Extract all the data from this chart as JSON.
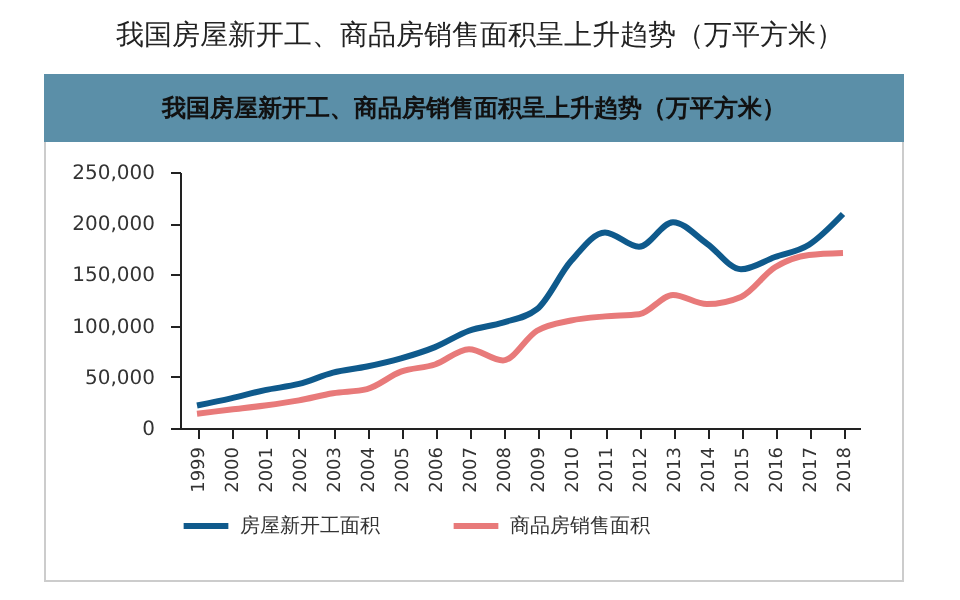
{
  "chart_data": {
    "type": "line",
    "title": "我国房屋新开工、商品房销售面积呈上升趋势（万平方米）",
    "subtitle": "我国房屋新开工、商品房销售面积呈上升趋势（万平方米）",
    "categories": [
      "1999",
      "2000",
      "2001",
      "2002",
      "2003",
      "2004",
      "2005",
      "2006",
      "2007",
      "2008",
      "2009",
      "2010",
      "2011",
      "2012",
      "2013",
      "2014",
      "2015",
      "2016",
      "2017",
      "2018"
    ],
    "series": [
      {
        "name": "房屋新开工面积",
        "color": "#0f5a8c",
        "values": [
          22000,
          29000,
          37000,
          43000,
          54000,
          60000,
          68000,
          79000,
          95000,
          103000,
          116000,
          163000,
          191000,
          177000,
          201000,
          180000,
          155000,
          167000,
          179000,
          209000
        ]
      },
      {
        "name": "商品房销售面积",
        "color": "#e87a7a",
        "values": [
          14000,
          18000,
          22000,
          27000,
          34000,
          38000,
          55000,
          62000,
          77000,
          66000,
          95000,
          105000,
          109000,
          111000,
          130000,
          121000,
          128000,
          157000,
          169000,
          171000
        ]
      }
    ],
    "ylim": [
      0,
      250000
    ],
    "yticks": [
      0,
      {
        "value": 50000,
        "label": "50,000"
      },
      {
        "value": 100000,
        "label": "100,000"
      },
      {
        "value": 150000,
        "label": "150,000"
      },
      {
        "value": 200000,
        "label": "200,000"
      },
      {
        "value": 250000,
        "label": "250,000"
      }
    ],
    "grid": false,
    "legend": "bottom",
    "line_style": "solid",
    "marker": "none"
  }
}
